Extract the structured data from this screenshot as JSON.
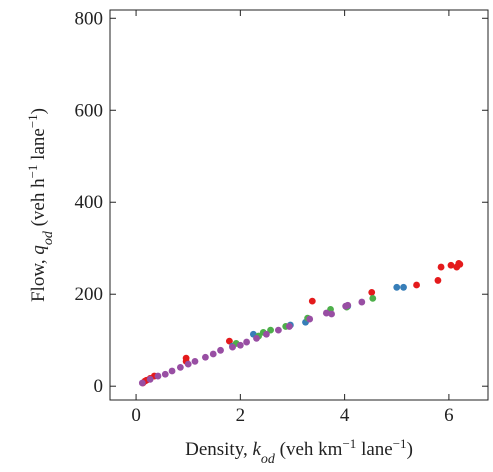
{
  "chart_data": {
    "type": "scatter",
    "x_label": [
      {
        "text": "Density, ",
        "kind": "normal"
      },
      {
        "text": "k",
        "kind": "italic"
      },
      {
        "text": "od",
        "kind": "sub"
      },
      {
        "text": " (veh km",
        "kind": "normal"
      },
      {
        "text": "−1",
        "kind": "sup"
      },
      {
        "text": " lane",
        "kind": "normal"
      },
      {
        "text": "−1",
        "kind": "sup"
      },
      {
        "text": ")",
        "kind": "normal"
      }
    ],
    "y_label": [
      {
        "text": "Flow, ",
        "kind": "normal"
      },
      {
        "text": "q",
        "kind": "italic"
      },
      {
        "text": "od",
        "kind": "sub"
      },
      {
        "text": " (veh h",
        "kind": "normal"
      },
      {
        "text": "−1",
        "kind": "sup"
      },
      {
        "text": " lane",
        "kind": "normal"
      },
      {
        "text": "−1",
        "kind": "sup"
      },
      {
        "text": ")",
        "kind": "normal"
      }
    ],
    "xlim": [
      -0.5,
      6.75
    ],
    "ylim": [
      -30,
      818
    ],
    "xticks": [
      0,
      2,
      4,
      6
    ],
    "yticks": [
      0,
      200,
      400,
      600,
      800
    ],
    "series": [
      {
        "color": "#e41a1c",
        "x": [
          0.13,
          0.17,
          0.2,
          0.27,
          0.35,
          0.96,
          0.96,
          1.79,
          3.38,
          4.52,
          5.38,
          5.79,
          5.85,
          6.04,
          6.15,
          6.21,
          6.19
        ],
        "y": [
          7,
          11,
          13,
          17,
          22,
          61,
          54,
          98,
          185,
          204,
          220,
          230,
          259,
          263,
          259,
          265,
          267
        ]
      },
      {
        "color": "#377eb8",
        "x": [
          1.85,
          2.25,
          2.96,
          3.25,
          4.06,
          5.0,
          5.13
        ],
        "y": [
          87,
          113,
          133,
          139,
          174,
          215,
          215
        ]
      },
      {
        "color": "#4daf4a",
        "x": [
          1.92,
          2.35,
          2.44,
          2.58,
          2.87,
          3.29,
          3.73,
          4.04,
          4.54
        ],
        "y": [
          93,
          109,
          117,
          122,
          130,
          148,
          167,
          172,
          191
        ]
      },
      {
        "color": "#984ea3",
        "x": [
          0.12,
          0.27,
          0.42,
          0.56,
          0.69,
          0.85,
          1.0,
          1.13,
          1.33,
          1.48,
          1.62,
          1.85,
          2.0,
          2.12,
          2.31,
          2.5,
          2.73,
          2.94,
          3.33,
          3.65,
          3.75,
          4.02,
          4.06,
          4.33
        ],
        "y": [
          7,
          15,
          22,
          26,
          33,
          41,
          48,
          54,
          63,
          70,
          78,
          85,
          89,
          96,
          104,
          113,
          122,
          130,
          146,
          159,
          157,
          174,
          176,
          183
        ]
      }
    ]
  }
}
